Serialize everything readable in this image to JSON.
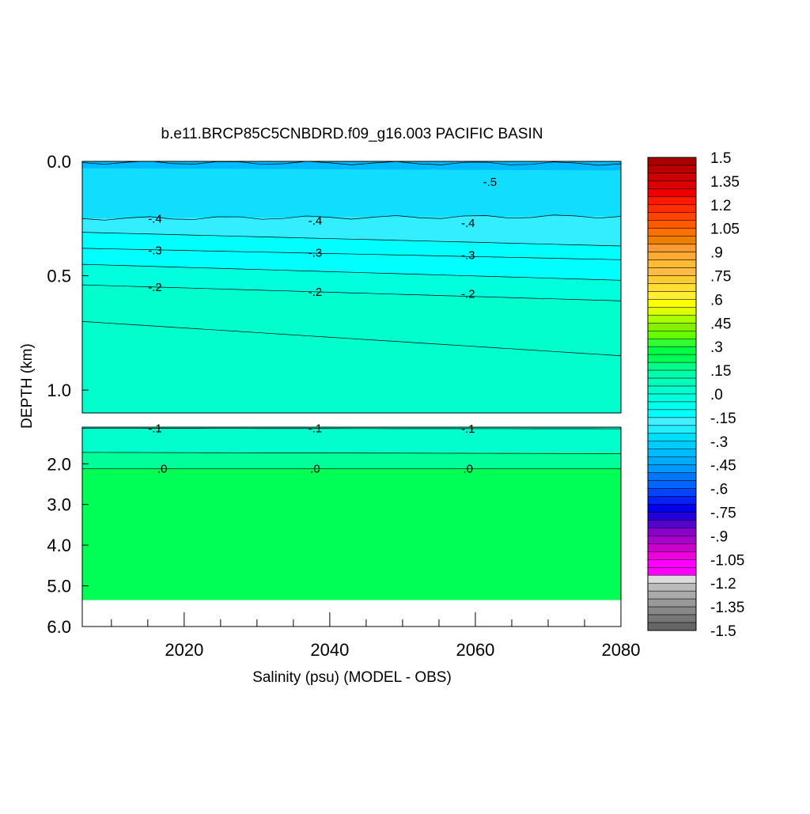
{
  "chart_data": {
    "type": "heatmap",
    "title": "b.e11.BRCP85C5CNBDRD.f09_g16.003 PACIFIC BASIN",
    "xlabel": "Salinity (psu) (MODEL - OBS)",
    "ylabel": "DEPTH (km)",
    "xlim": [
      2006,
      2080
    ],
    "x_ticks": [
      "2020",
      "2040",
      "2060",
      "2080"
    ],
    "upper_panel": {
      "ylim": [
        0.0,
        1.1
      ],
      "y_ticks": [
        "0.0",
        "0.5",
        "1.0"
      ]
    },
    "lower_panel": {
      "ylim": [
        1.1,
        6.0
      ],
      "y_ticks": [
        "2.0",
        "3.0",
        "4.0",
        "5.0",
        "6.0"
      ]
    },
    "bottom_depth_km": 5.35,
    "contour_labels": [
      {
        "text": "-.5",
        "x": 2062,
        "y": 0.09
      },
      {
        "text": "-.4",
        "x": 2016,
        "y": 0.25
      },
      {
        "text": "-.4",
        "x": 2038,
        "y": 0.26
      },
      {
        "text": "-.4",
        "x": 2059,
        "y": 0.27
      },
      {
        "text": "-.3",
        "x": 2016,
        "y": 0.39
      },
      {
        "text": "-.3",
        "x": 2038,
        "y": 0.4
      },
      {
        "text": "-.3",
        "x": 2059,
        "y": 0.41
      },
      {
        "text": "-.2",
        "x": 2016,
        "y": 0.55
      },
      {
        "text": "-.2",
        "x": 2038,
        "y": 0.57
      },
      {
        "text": "-.2",
        "x": 2059,
        "y": 0.58
      },
      {
        "text": "-.1",
        "x": 2016,
        "y": 1.13
      },
      {
        "text": "-.1",
        "x": 2038,
        "y": 1.13
      },
      {
        "text": "-.1",
        "x": 2059,
        "y": 1.14
      },
      {
        "text": ".0",
        "x": 2017,
        "y": 2.12
      },
      {
        "text": ".0",
        "x": 2038,
        "y": 2.12
      },
      {
        "text": ".0",
        "x": 2059,
        "y": 2.12
      }
    ],
    "filled_bands": [
      {
        "value": -0.55,
        "color": "#00bbff",
        "y_top": [
          0.0,
          0.0
        ],
        "y_bot": [
          0.035,
          0.04
        ]
      },
      {
        "value": -0.45,
        "color": "#11ddff",
        "y_top": [
          0.03,
          0.04
        ],
        "y_bot": [
          0.25,
          0.24
        ]
      },
      {
        "value": -0.35,
        "color": "#33eeff",
        "y_top": [
          0.25,
          0.24
        ],
        "y_bot": [
          0.31,
          0.37
        ]
      },
      {
        "value": -0.25,
        "color": "#00ffff",
        "y_top": [
          0.31,
          0.37
        ],
        "y_bot": [
          0.45,
          0.52
        ]
      },
      {
        "value": -0.15,
        "color": "#00ffdd",
        "y_top": [
          0.45,
          0.52
        ],
        "y_bot": [
          0.54,
          0.61
        ]
      },
      {
        "value": -0.05,
        "color": "#00ffcc",
        "y_top": [
          0.54,
          0.61
        ],
        "y_bot": [
          0.7,
          0.85
        ]
      }
    ],
    "contour_lines": [
      {
        "value": -0.5,
        "y": [
          0.005,
          0.01
        ]
      },
      {
        "value": -0.4,
        "y": [
          0.25,
          0.24
        ]
      },
      {
        "value": -0.35,
        "y": [
          0.31,
          0.37
        ]
      },
      {
        "value": -0.3,
        "y": [
          0.38,
          0.43
        ]
      },
      {
        "value": -0.25,
        "y": [
          0.45,
          0.52
        ]
      },
      {
        "value": -0.2,
        "y": [
          0.54,
          0.61
        ]
      },
      {
        "value": -0.15,
        "y": [
          0.7,
          0.85
        ]
      },
      {
        "value": -0.1,
        "y": [
          1.13,
          1.14
        ]
      },
      {
        "value": -0.05,
        "y": [
          1.72,
          1.75
        ]
      },
      {
        "value": 0.0,
        "y": [
          2.12,
          2.12
        ]
      }
    ],
    "deep_fill": [
      {
        "color": "#00ffcc",
        "y_top": 1.1,
        "y_bot": 1.72
      },
      {
        "color": "#00ff99",
        "y_top": 1.72,
        "y_bot": 2.12
      },
      {
        "color": "#00ff55",
        "y_top": 2.12,
        "y_bot": 5.35
      }
    ],
    "colorbar": {
      "labels": [
        "1.5",
        "1.35",
        "1.2",
        "1.05",
        ".9",
        ".75",
        ".6",
        ".45",
        ".3",
        ".15",
        ".0",
        "-.15",
        "-.3",
        "-.45",
        "-.6",
        "-.75",
        "-.9",
        "-1.05",
        "-1.2",
        "-1.35",
        "-1.5"
      ],
      "colors": [
        "#aa0000",
        "#bb0000",
        "#cc0000",
        "#dd0000",
        "#ee0000",
        "#ff1a00",
        "#ff2d00",
        "#ff4400",
        "#ff5a00",
        "#ff7000",
        "#ee8000",
        "#ff9933",
        "#ffaa33",
        "#ffbb33",
        "#ffbb44",
        "#ffcc33",
        "#ffdd33",
        "#ffee33",
        "#ffff00",
        "#ddff00",
        "#aaff00",
        "#88ee00",
        "#66ff00",
        "#33ff33",
        "#00ff44",
        "#00ff55",
        "#00ff88",
        "#00ffaa",
        "#00ffbb",
        "#00ffcc",
        "#00ffdd",
        "#00ffee",
        "#00ffff",
        "#44eeff",
        "#22eeff",
        "#00ddff",
        "#00ccff",
        "#00bbff",
        "#00aaff",
        "#0099ff",
        "#0077ff",
        "#0066ff",
        "#0044ff",
        "#0022ff",
        "#0000ee",
        "#2200dd",
        "#5500cc",
        "#8800cc",
        "#aa00cc",
        "#cc00cc",
        "#ee00dd",
        "#ff00ff",
        "#ff00ff",
        "#dddddd",
        "#bbbbbb",
        "#aaaaaa",
        "#999999",
        "#888888",
        "#777777",
        "#666666"
      ]
    }
  }
}
